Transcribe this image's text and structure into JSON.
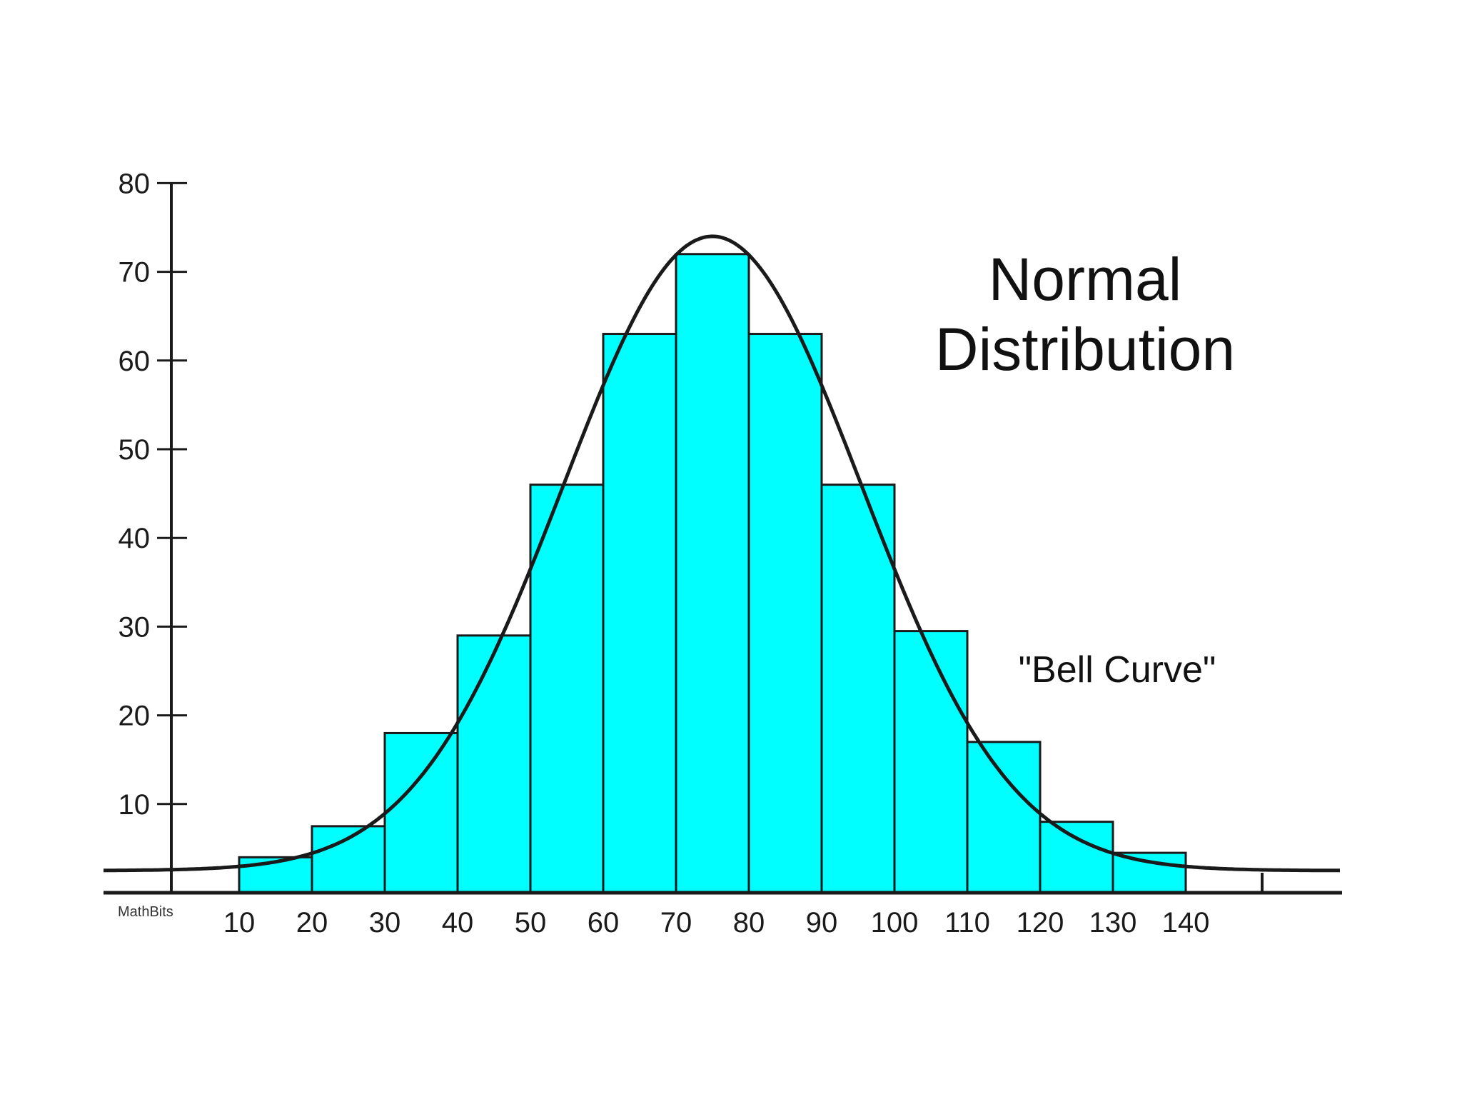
{
  "chart_data": {
    "type": "bar",
    "title_lines": [
      "Normal",
      "Distribution"
    ],
    "annotation": "\"Bell Curve\"",
    "watermark": "MathBits",
    "x_tick_labels": [
      "10",
      "20",
      "30",
      "40",
      "50",
      "60",
      "70",
      "80",
      "90",
      "100",
      "110",
      "120",
      "130",
      "140"
    ],
    "y_ticks": [
      10,
      20,
      30,
      40,
      50,
      60,
      70,
      80
    ],
    "ylim": [
      0,
      80
    ],
    "bins": [
      {
        "from": 10,
        "to": 20,
        "value": 4
      },
      {
        "from": 20,
        "to": 30,
        "value": 7.5
      },
      {
        "from": 30,
        "to": 40,
        "value": 18
      },
      {
        "from": 40,
        "to": 50,
        "value": 29
      },
      {
        "from": 50,
        "to": 60,
        "value": 46
      },
      {
        "from": 60,
        "to": 70,
        "value": 63
      },
      {
        "from": 70,
        "to": 80,
        "value": 72
      },
      {
        "from": 80,
        "to": 90,
        "value": 63
      },
      {
        "from": 90,
        "to": 100,
        "value": 46
      },
      {
        "from": 100,
        "to": 110,
        "value": 29.5
      },
      {
        "from": 110,
        "to": 120,
        "value": 17
      },
      {
        "from": 120,
        "to": 130,
        "value": 8
      },
      {
        "from": 130,
        "to": 140,
        "value": 4.5
      }
    ],
    "curve": {
      "mean": 75,
      "peak": 74,
      "sd": 20.5,
      "baseline": 2.5
    },
    "bar_color": "#00ffff",
    "line_color": "#1a1a1a"
  }
}
